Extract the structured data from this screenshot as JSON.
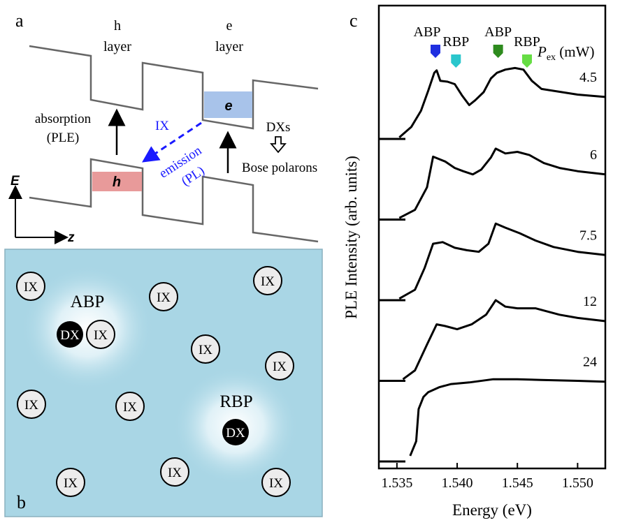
{
  "panel_a": {
    "label": "a",
    "h_layer": [
      "h",
      "layer"
    ],
    "e_layer": [
      "e",
      "layer"
    ],
    "absorption": [
      "absorption",
      "(PLE)"
    ],
    "ix": "IX",
    "emission": [
      "emission",
      "(PL)"
    ],
    "dxs": "DXs",
    "bose": "Bose polarons",
    "e_box": "e",
    "h_box": "h",
    "axis_e": "E",
    "axis_z": "z",
    "colors": {
      "e_box": "#a8c3ea",
      "h_box": "#e89a9a",
      "band": "#666666",
      "emission": "#1a1aff"
    }
  },
  "panel_b": {
    "label": "b",
    "abp": "ABP",
    "rbp": "RBP",
    "ix": "IX",
    "dx": "DX",
    "background_color": "#a9d6e5"
  },
  "panel_c": {
    "label": "c",
    "ylabel": "PLE Intensity (arb. units)",
    "xlabel": "Energy (eV)",
    "markers": [
      {
        "label": "ABP",
        "energy": 1.5382,
        "color": "#1f2fe0"
      },
      {
        "label": "RBP",
        "energy": 1.5399,
        "color": "#2ac6cc"
      },
      {
        "label": "ABP",
        "energy": 1.5434,
        "color": "#2e8b1e"
      },
      {
        "label": "RBP",
        "energy": 1.5458,
        "color": "#66dd44"
      }
    ],
    "pex_label": "P",
    "pex_sub": "ex",
    "pex_unit": " (mW)"
  },
  "chart_data": {
    "type": "line",
    "title": "",
    "xlabel": "Energy (eV)",
    "ylabel": "PLE Intensity (arb. units)",
    "xlim": [
      1.5335,
      1.5523
    ],
    "xticks": [
      "1.535",
      "1.540",
      "1.545",
      "1.550"
    ],
    "series": [
      {
        "name": "4.5",
        "baseline": 4,
        "x": [
          1.5352,
          1.5362,
          1.537,
          1.5376,
          1.5381,
          1.5383,
          1.5386,
          1.5392,
          1.5398,
          1.5404,
          1.541,
          1.5415,
          1.5422,
          1.5428,
          1.5433,
          1.544,
          1.5448,
          1.5455,
          1.5462,
          1.547,
          1.55,
          1.5523
        ],
        "y": [
          4.02,
          4.15,
          4.35,
          4.6,
          4.82,
          4.85,
          4.72,
          4.71,
          4.68,
          4.54,
          4.42,
          4.48,
          4.58,
          4.75,
          4.82,
          4.86,
          4.88,
          4.86,
          4.72,
          4.62,
          4.55,
          4.52
        ]
      },
      {
        "name": "6",
        "baseline": 3,
        "x": [
          1.5352,
          1.5365,
          1.5375,
          1.538,
          1.539,
          1.5398,
          1.5405,
          1.5413,
          1.542,
          1.5428,
          1.5432,
          1.544,
          1.545,
          1.546,
          1.5472,
          1.5485,
          1.55,
          1.5523
        ],
        "y": [
          3.02,
          3.12,
          3.4,
          3.78,
          3.72,
          3.64,
          3.6,
          3.56,
          3.62,
          3.77,
          3.88,
          3.82,
          3.84,
          3.8,
          3.7,
          3.64,
          3.6,
          3.56
        ]
      },
      {
        "name": "7.5",
        "baseline": 2,
        "x": [
          1.5352,
          1.5365,
          1.5373,
          1.538,
          1.5388,
          1.5398,
          1.5408,
          1.5418,
          1.5426,
          1.5432,
          1.544,
          1.5452,
          1.5465,
          1.548,
          1.55,
          1.5523
        ],
        "y": [
          2.02,
          2.13,
          2.4,
          2.7,
          2.72,
          2.65,
          2.62,
          2.6,
          2.7,
          2.95,
          2.9,
          2.83,
          2.74,
          2.66,
          2.6,
          2.56
        ]
      },
      {
        "name": "12",
        "baseline": 1,
        "x": [
          1.5355,
          1.5365,
          1.5375,
          1.5383,
          1.539,
          1.54,
          1.5412,
          1.5424,
          1.5432,
          1.544,
          1.545,
          1.5465,
          1.5485,
          1.55,
          1.5523
        ],
        "y": [
          1.02,
          1.13,
          1.45,
          1.7,
          1.68,
          1.64,
          1.7,
          1.82,
          2.0,
          1.92,
          1.9,
          1.9,
          1.82,
          1.78,
          1.74
        ]
      },
      {
        "name": "24",
        "baseline": 0,
        "x": [
          1.5361,
          1.5366,
          1.5368,
          1.5372,
          1.5376,
          1.5385,
          1.5395,
          1.541,
          1.543,
          1.545,
          1.547,
          1.55,
          1.5523
        ],
        "y": [
          0.07,
          0.25,
          0.65,
          0.8,
          0.86,
          0.92,
          0.96,
          0.98,
          1.02,
          1.02,
          1.01,
          1.0,
          0.99
        ]
      }
    ]
  }
}
